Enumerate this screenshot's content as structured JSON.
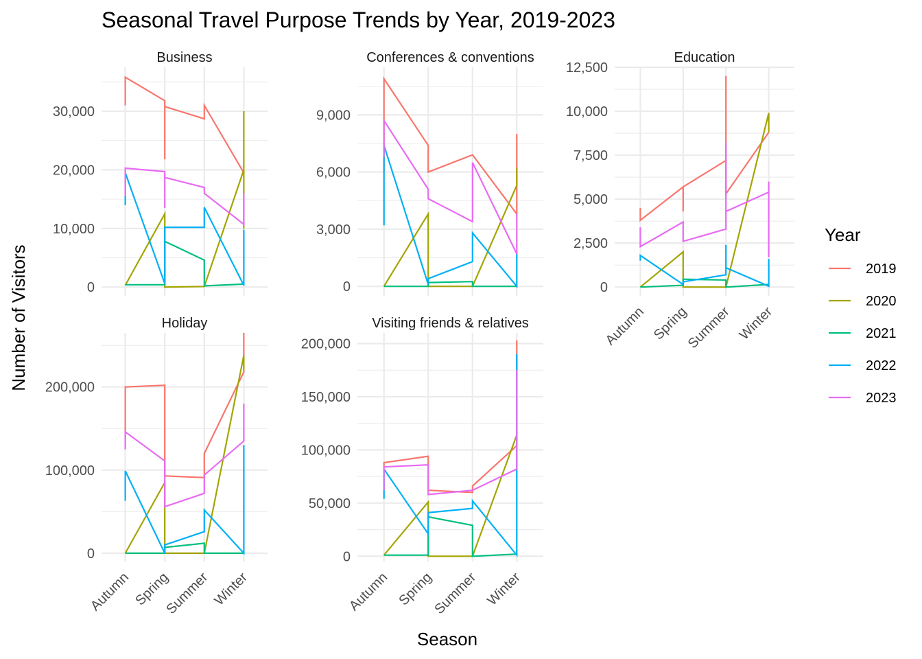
{
  "chart_data": {
    "type": "line",
    "title": "Seasonal Travel Purpose Trends by Year, 2019-2023",
    "xlabel": "Season",
    "ylabel": "Number of Visitors",
    "legend": {
      "title": "Year",
      "placement": "right"
    },
    "categories": [
      "Autumn",
      "Spring",
      "Summer",
      "Winter"
    ],
    "series_colors": {
      "2019": "#F8766D",
      "2020": "#A3A500",
      "2021": "#00BF7D",
      "2022": "#00B0F6",
      "2023": "#E76BF3"
    },
    "panels": [
      {
        "name": "Business",
        "strip_label": "Business",
        "ylim": [
          -1500,
          37500
        ],
        "yticks": [
          0,
          10000,
          20000,
          30000
        ],
        "ytick_labels": [
          "0",
          "10,000",
          "20,000",
          "30,000"
        ],
        "series": [
          {
            "name": "2019",
            "points": [
              [
                0,
                31000
              ],
              [
                0,
                35800
              ],
              [
                1,
                31800
              ],
              [
                1,
                21800
              ],
              [
                1,
                30800
              ],
              [
                2,
                28700
              ],
              [
                2,
                31000
              ],
              [
                3,
                19500
              ],
              [
                3,
                20000
              ]
            ]
          },
          {
            "name": "2020",
            "points": [
              [
                0,
                300
              ],
              [
                1,
                12500
              ],
              [
                1,
                0
              ],
              [
                2,
                100
              ],
              [
                3,
                20000
              ],
              [
                3,
                10000
              ],
              [
                3,
                30000
              ]
            ]
          },
          {
            "name": "2021",
            "points": [
              [
                0,
                400
              ],
              [
                1,
                400
              ],
              [
                1,
                7800
              ],
              [
                2,
                4600
              ],
              [
                2,
                200
              ],
              [
                3,
                500
              ]
            ]
          },
          {
            "name": "2022",
            "points": [
              [
                0,
                14000
              ],
              [
                0,
                19500
              ],
              [
                1,
                600
              ],
              [
                1,
                10200
              ],
              [
                2,
                10200
              ],
              [
                2,
                13600
              ],
              [
                3,
                300
              ],
              [
                3,
                9800
              ]
            ]
          },
          {
            "name": "2023",
            "points": [
              [
                0,
                15500
              ],
              [
                0,
                20300
              ],
              [
                1,
                19700
              ],
              [
                1,
                13500
              ],
              [
                1,
                18700
              ],
              [
                2,
                17000
              ],
              [
                2,
                16000
              ],
              [
                3,
                10700
              ],
              [
                3,
                16000
              ]
            ]
          }
        ]
      },
      {
        "name": "Conferences & conventions",
        "strip_label": "Conferences & conventions",
        "ylim": [
          -500,
          11500
        ],
        "yticks": [
          0,
          3000,
          6000,
          9000
        ],
        "ytick_labels": [
          "0",
          "3,000",
          "6,000",
          "9,000"
        ],
        "series": [
          {
            "name": "2019",
            "points": [
              [
                0,
                6000
              ],
              [
                0,
                10900
              ],
              [
                1,
                7400
              ],
              [
                1,
                6000
              ],
              [
                2,
                6900
              ],
              [
                3,
                3800
              ],
              [
                3,
                8000
              ]
            ]
          },
          {
            "name": "2020",
            "points": [
              [
                0,
                0
              ],
              [
                1,
                3800
              ],
              [
                1,
                0
              ],
              [
                2,
                0
              ],
              [
                3,
                5300
              ],
              [
                3,
                6200
              ]
            ]
          },
          {
            "name": "2021",
            "points": [
              [
                0,
                0
              ],
              [
                1,
                0
              ],
              [
                1,
                200
              ],
              [
                2,
                250
              ],
              [
                2,
                0
              ],
              [
                3,
                0
              ]
            ]
          },
          {
            "name": "2022",
            "points": [
              [
                0,
                3200
              ],
              [
                0,
                7400
              ],
              [
                1,
                100
              ],
              [
                1,
                400
              ],
              [
                2,
                1300
              ],
              [
                2,
                2800
              ],
              [
                3,
                0
              ],
              [
                3,
                1800
              ]
            ]
          },
          {
            "name": "2023",
            "points": [
              [
                0,
                6800
              ],
              [
                0,
                8700
              ],
              [
                1,
                5100
              ],
              [
                1,
                4600
              ],
              [
                2,
                3400
              ],
              [
                2,
                6500
              ],
              [
                3,
                1700
              ],
              [
                3,
                3800
              ]
            ]
          }
        ]
      },
      {
        "name": "Education",
        "strip_label": "Education",
        "ylim": [
          -500,
          12500
        ],
        "yticks": [
          0,
          2500,
          5000,
          7500,
          10000,
          12500
        ],
        "ytick_labels": [
          "0",
          "2,500",
          "5,000",
          "7,500",
          "10,000",
          "12,500"
        ],
        "series": [
          {
            "name": "2019",
            "points": [
              [
                0,
                4500
              ],
              [
                0,
                3800
              ],
              [
                1,
                5700
              ],
              [
                1,
                4300
              ],
              [
                1,
                5700
              ],
              [
                2,
                7200
              ],
              [
                2,
                12000
              ],
              [
                2,
                5300
              ],
              [
                3,
                8800
              ]
            ]
          },
          {
            "name": "2020",
            "points": [
              [
                0,
                0
              ],
              [
                1,
                2000
              ],
              [
                1,
                0
              ],
              [
                2,
                0
              ],
              [
                3,
                9900
              ],
              [
                3,
                8800
              ]
            ]
          },
          {
            "name": "2021",
            "points": [
              [
                0,
                0
              ],
              [
                1,
                100
              ],
              [
                1,
                450
              ],
              [
                2,
                400
              ],
              [
                2,
                0
              ],
              [
                3,
                150
              ]
            ]
          },
          {
            "name": "2022",
            "points": [
              [
                0,
                1500
              ],
              [
                0,
                1800
              ],
              [
                1,
                150
              ],
              [
                1,
                300
              ],
              [
                2,
                700
              ],
              [
                2,
                2400
              ],
              [
                2,
                1100
              ],
              [
                3,
                50
              ],
              [
                3,
                1600
              ]
            ]
          },
          {
            "name": "2023",
            "points": [
              [
                0,
                3400
              ],
              [
                0,
                2300
              ],
              [
                1,
                3700
              ],
              [
                1,
                2600
              ],
              [
                2,
                3300
              ],
              [
                2,
                8200
              ],
              [
                2,
                4300
              ],
              [
                3,
                5400
              ],
              [
                3,
                1700
              ],
              [
                3,
                6000
              ]
            ]
          }
        ]
      },
      {
        "name": "Holiday",
        "strip_label": "Holiday",
        "ylim": [
          -10000,
          265000
        ],
        "yticks": [
          0,
          100000,
          200000
        ],
        "ytick_labels": [
          "0",
          "100,000",
          "200,000"
        ],
        "series": [
          {
            "name": "2019",
            "points": [
              [
                0,
                130000
              ],
              [
                0,
                200000
              ],
              [
                1,
                202000
              ],
              [
                1,
                93000
              ],
              [
                2,
                91000
              ],
              [
                2,
                120000
              ],
              [
                3,
                218000
              ],
              [
                3,
                268000
              ]
            ]
          },
          {
            "name": "2020",
            "points": [
              [
                0,
                0
              ],
              [
                1,
                85000
              ],
              [
                1,
                0
              ],
              [
                2,
                0
              ],
              [
                3,
                238000
              ],
              [
                3,
                220000
              ]
            ]
          },
          {
            "name": "2021",
            "points": [
              [
                0,
                0
              ],
              [
                1,
                0
              ],
              [
                1,
                7000
              ],
              [
                2,
                12000
              ],
              [
                2,
                0
              ],
              [
                3,
                0
              ]
            ]
          },
          {
            "name": "2022",
            "points": [
              [
                0,
                63000
              ],
              [
                0,
                99000
              ],
              [
                1,
                0
              ],
              [
                1,
                10000
              ],
              [
                2,
                26000
              ],
              [
                2,
                52000
              ],
              [
                3,
                0
              ],
              [
                3,
                130000
              ]
            ]
          },
          {
            "name": "2023",
            "points": [
              [
                0,
                125000
              ],
              [
                0,
                146000
              ],
              [
                1,
                111000
              ],
              [
                1,
                56000
              ],
              [
                2,
                72000
              ],
              [
                2,
                94000
              ],
              [
                3,
                135000
              ],
              [
                3,
                180000
              ]
            ]
          }
        ]
      },
      {
        "name": "Visiting friends & relatives",
        "strip_label": "Visiting friends & relatives",
        "ylim": [
          -5000,
          210000
        ],
        "yticks": [
          0,
          50000,
          100000,
          150000,
          200000
        ],
        "ytick_labels": [
          "0",
          "50,000",
          "100,000",
          "150,000",
          "200,000"
        ],
        "series": [
          {
            "name": "2019",
            "points": [
              [
                0,
                84000
              ],
              [
                0,
                88000
              ],
              [
                1,
                94000
              ],
              [
                1,
                62000
              ],
              [
                2,
                60000
              ],
              [
                2,
                66000
              ],
              [
                3,
                104000
              ],
              [
                3,
                203000
              ]
            ]
          },
          {
            "name": "2020",
            "points": [
              [
                0,
                1000
              ],
              [
                1,
                51000
              ],
              [
                1,
                0
              ],
              [
                2,
                0
              ],
              [
                3,
                114000
              ],
              [
                3,
                108000
              ]
            ]
          },
          {
            "name": "2021",
            "points": [
              [
                0,
                1000
              ],
              [
                1,
                1000
              ],
              [
                1,
                37000
              ],
              [
                2,
                29000
              ],
              [
                2,
                0
              ],
              [
                3,
                2000
              ]
            ]
          },
          {
            "name": "2022",
            "points": [
              [
                0,
                54000
              ],
              [
                0,
                82000
              ],
              [
                1,
                21000
              ],
              [
                1,
                41000
              ],
              [
                2,
                45000
              ],
              [
                2,
                52000
              ],
              [
                3,
                1000
              ],
              [
                3,
                190000
              ]
            ]
          },
          {
            "name": "2023",
            "points": [
              [
                0,
                62000
              ],
              [
                0,
                84000
              ],
              [
                1,
                86000
              ],
              [
                1,
                58000
              ],
              [
                2,
                62000
              ],
              [
                3,
                82000
              ],
              [
                3,
                175000
              ]
            ]
          }
        ]
      }
    ]
  }
}
